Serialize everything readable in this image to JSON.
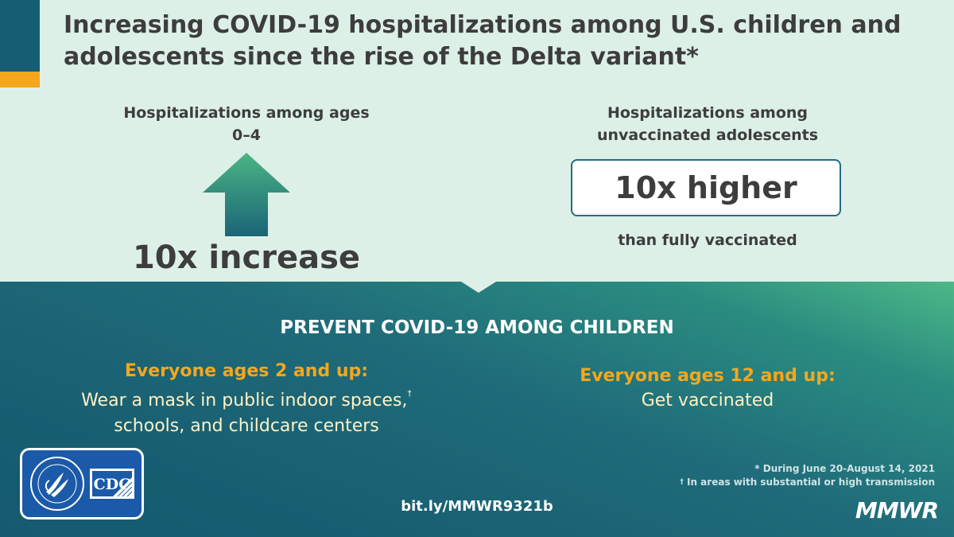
{
  "title": "Increasing COVID-19 hospitalizations among U.S. children and adolescents since the rise of the Delta variant*",
  "stat_left": {
    "label": "Hospitalizations among ages 0–4",
    "value": "10x increase",
    "icon": "up-arrow-icon"
  },
  "stat_right": {
    "label": "Hospitalizations among unvaccinated adolescents",
    "value": "10x higher",
    "sublabel": "than fully vaccinated"
  },
  "prevent_heading": "PREVENT COVID-19 AMONG CHILDREN",
  "recommendations": {
    "left": {
      "heading": "Everyone ages 2 and up:",
      "text": "Wear a mask in public indoor spaces,",
      "text_mark": "†",
      "text_line2": "schools, and childcare centers"
    },
    "right": {
      "heading": "Everyone ages 12 and up:",
      "text": "Get vaccinated"
    }
  },
  "logos": {
    "hhs": "hhs-seal-icon",
    "cdc_text": "CDC"
  },
  "link": "bit.ly/MMWR9321b",
  "footnotes": {
    "asterisk": "* During June 20-August 14, 2021",
    "dagger_mark": "†",
    "dagger": "In areas with substantial or high transmission"
  },
  "brand": "MMWR",
  "colors": {
    "accent_orange": "#f4a71d",
    "accent_teal": "#155e72",
    "top_bg": "#ddf0e7",
    "text_dark": "#3d3d3d"
  }
}
